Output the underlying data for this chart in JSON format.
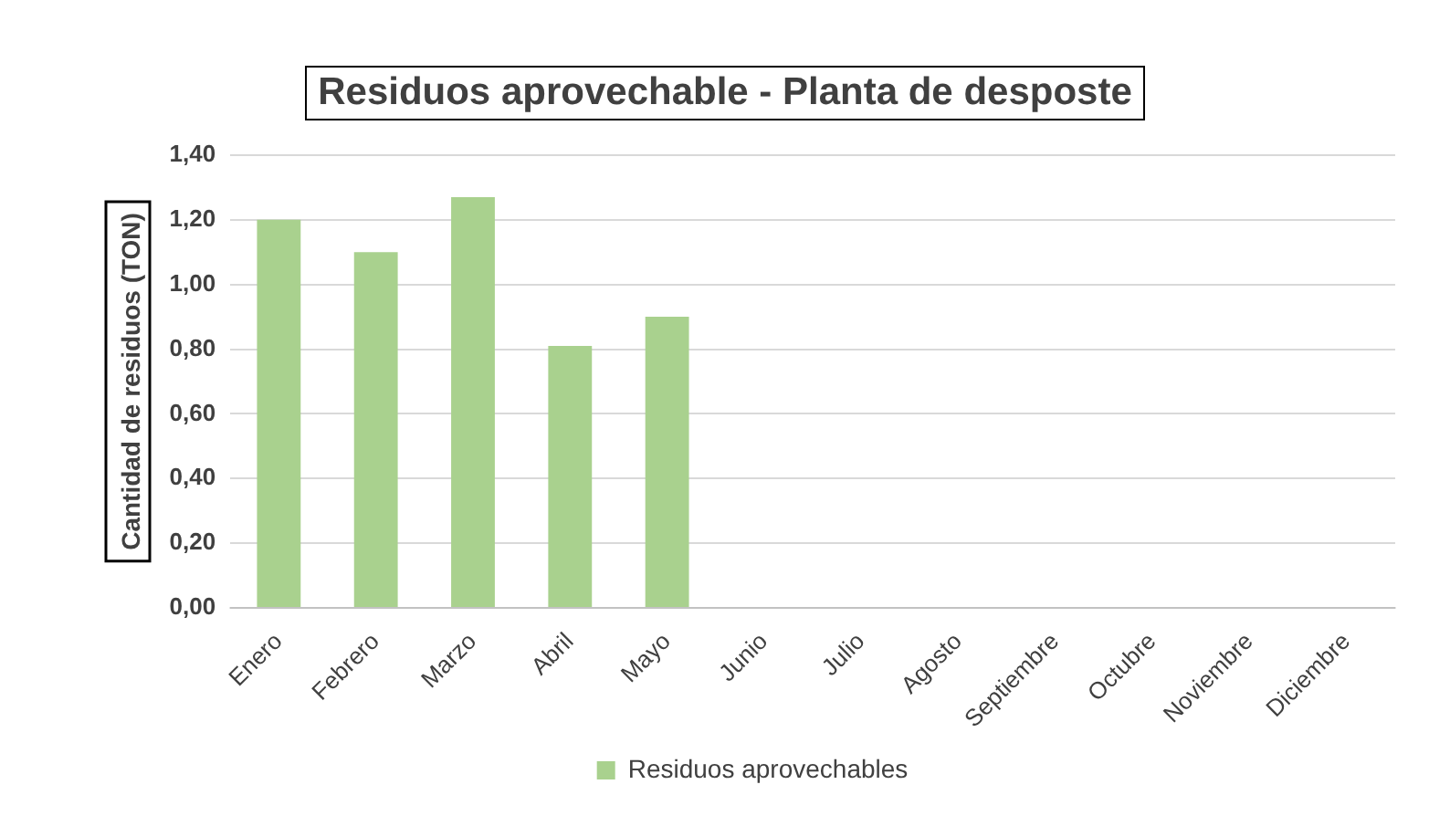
{
  "chart_data": {
    "type": "bar",
    "title": "Residuos aprovechable - Planta de desposte",
    "ylabel": "Cantidad de residuos (TON)",
    "categories": [
      "Enero",
      "Febrero",
      "Marzo",
      "Abril",
      "Mayo",
      "Junio",
      "Julio",
      "Agosto",
      "Septiembre",
      "Octubre",
      "Noviembre",
      "Diciembre"
    ],
    "series": [
      {
        "name": "Residuos aprovechables",
        "color": "#a9d18e",
        "values": [
          1.2,
          1.1,
          1.27,
          0.81,
          0.9,
          null,
          null,
          null,
          null,
          null,
          null,
          null
        ]
      }
    ],
    "ylim": [
      0,
      1.4
    ],
    "yticks": [
      {
        "value": 0,
        "label": "0,00"
      },
      {
        "value": 0.2,
        "label": "0,20"
      },
      {
        "value": 0.4,
        "label": "0,40"
      },
      {
        "value": 0.6,
        "label": "0,60"
      },
      {
        "value": 0.8,
        "label": "0,80"
      },
      {
        "value": 1,
        "label": "1,00"
      },
      {
        "value": 1.2,
        "label": "1,20"
      },
      {
        "value": 1.4,
        "label": "1,40"
      }
    ],
    "grid": "y",
    "legend": "bottom"
  }
}
